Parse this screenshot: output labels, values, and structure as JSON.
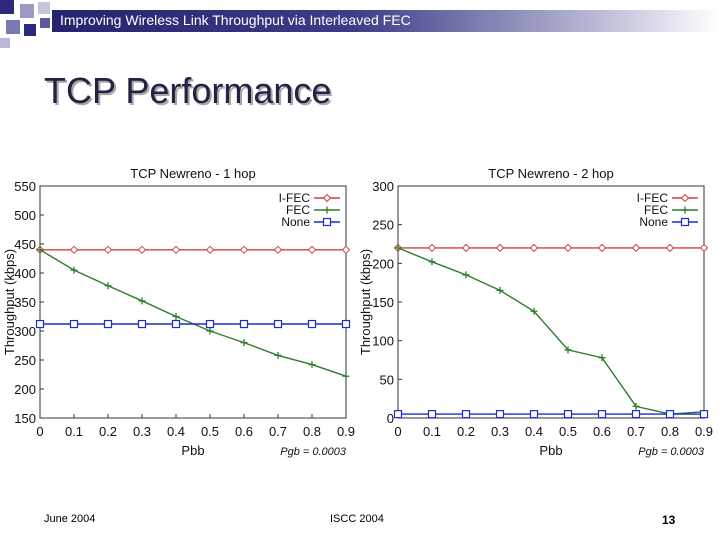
{
  "header": {
    "text": "Improving Wireless Link Throughput via Interleaved FEC"
  },
  "slide": {
    "title": "TCP Performance"
  },
  "footer": {
    "date": "June 2004",
    "conference": "ISCC 2004",
    "page_number": "13"
  },
  "colors": {
    "header_dark": "#24246e",
    "title": "#222244",
    "ifec": "#d04040",
    "fec": "#2e7d2e",
    "none": "#1a2ecc",
    "deco_square": "#2a2a7a"
  },
  "icons": {
    "ifec_marker": "diamond",
    "fec_marker": "plus",
    "none_marker": "square"
  },
  "chart_data": [
    {
      "type": "line",
      "title": "TCP Newreno - 1 hop",
      "xlabel": "Pbb",
      "ylabel": "Throughput (kbps)",
      "annotation": "Pgb = 0.0003",
      "x": [
        0,
        0.1,
        0.2,
        0.3,
        0.4,
        0.5,
        0.6,
        0.7,
        0.8,
        0.9
      ],
      "xticks": [
        "0",
        "0.1",
        "0.2",
        "0.3",
        "0.4",
        "0.5",
        "0.6",
        "0.7",
        "0.8",
        "0.9"
      ],
      "yticks": [
        150,
        200,
        250,
        300,
        350,
        400,
        450,
        500,
        550
      ],
      "xlim": [
        0,
        0.9
      ],
      "ylim": [
        150,
        550
      ],
      "legend_position": "top-right",
      "series": [
        {
          "name": "I-FEC",
          "marker": "diamond",
          "color": "#d04040",
          "values": [
            440,
            440,
            440,
            440,
            440,
            440,
            440,
            440,
            440,
            440
          ]
        },
        {
          "name": "FEC",
          "marker": "plus",
          "color": "#2e7d2e",
          "values": [
            440,
            405,
            378,
            352,
            325,
            300,
            280,
            258,
            242,
            222
          ]
        },
        {
          "name": "None",
          "marker": "square",
          "color": "#1a2ecc",
          "values": [
            312,
            312,
            312,
            312,
            312,
            312,
            312,
            312,
            312,
            312
          ]
        }
      ]
    },
    {
      "type": "line",
      "title": "TCP Newreno - 2 hop",
      "xlabel": "Pbb",
      "ylabel": "Throughput (kbps)",
      "annotation": "Pgb = 0.0003",
      "x": [
        0,
        0.1,
        0.2,
        0.3,
        0.4,
        0.5,
        0.6,
        0.7,
        0.8,
        0.9
      ],
      "xticks": [
        "0",
        "0.1",
        "0.2",
        "0.3",
        "0.4",
        "0.5",
        "0.6",
        "0.7",
        "0.8",
        "0.9"
      ],
      "yticks": [
        0,
        50,
        100,
        150,
        200,
        250,
        300
      ],
      "xlim": [
        0,
        0.9
      ],
      "ylim": [
        0,
        300
      ],
      "legend_position": "top-right",
      "series": [
        {
          "name": "I-FEC",
          "marker": "diamond",
          "color": "#d04040",
          "values": [
            220,
            220,
            220,
            220,
            220,
            220,
            220,
            220,
            220,
            220
          ]
        },
        {
          "name": "FEC",
          "marker": "plus",
          "color": "#2e7d2e",
          "values": [
            220,
            202,
            185,
            165,
            138,
            88,
            78,
            15,
            5,
            8
          ]
        },
        {
          "name": "None",
          "marker": "square",
          "color": "#1a2ecc",
          "values": [
            5,
            5,
            5,
            5,
            5,
            5,
            5,
            5,
            5,
            5
          ]
        }
      ]
    }
  ]
}
